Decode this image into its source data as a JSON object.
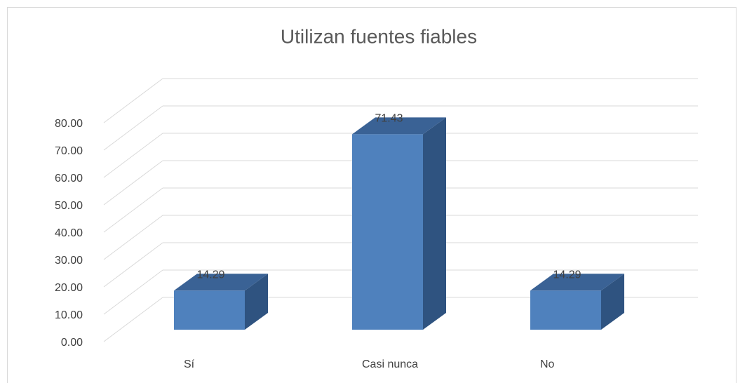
{
  "chart_data": {
    "type": "bar3d",
    "title": "Utilizan fuentes fiables",
    "categories": [
      "Sí",
      "Casi nunca",
      "No"
    ],
    "values": [
      14.29,
      71.43,
      14.29
    ],
    "color": "#4f81bd",
    "ylim": [
      0,
      80
    ],
    "yticks": [
      {
        "value": 0,
        "label": "0.00"
      },
      {
        "value": 10,
        "label": "10.00"
      },
      {
        "value": 20,
        "label": "20.00"
      },
      {
        "value": 30,
        "label": "30.00"
      },
      {
        "value": 40,
        "label": "40.00"
      },
      {
        "value": 50,
        "label": "50.00"
      },
      {
        "value": 60,
        "label": "60.00"
      },
      {
        "value": 70,
        "label": "70.00"
      },
      {
        "value": 80,
        "label": "80.00"
      }
    ],
    "grid": true
  }
}
